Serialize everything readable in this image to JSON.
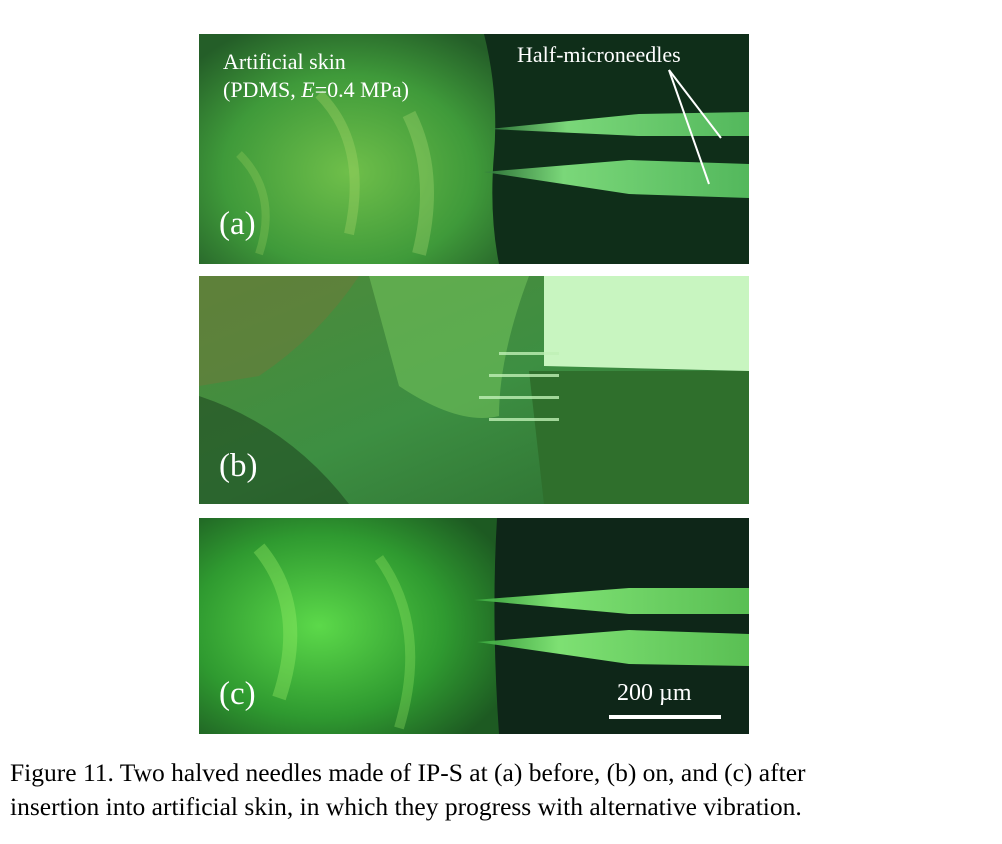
{
  "panels": [
    {
      "id": "a",
      "label": "(a)",
      "annotations": {
        "skin_line1": "Artificial skin",
        "skin_line2_prefix": "(PDMS, ",
        "skin_line2_var": "E",
        "skin_line2_suffix": "=0.4 MPa)",
        "needles": "Half-microneedles"
      }
    },
    {
      "id": "b",
      "label": "(b)"
    },
    {
      "id": "c",
      "label": "(c)",
      "scale_bar": "200 µm"
    }
  ],
  "caption": {
    "line1": "Figure 11. Two halved needles made of IP-S at (a) before, (b) on, and (c) after",
    "line2": "insertion into artificial skin, in which they progress with alternative vibration."
  },
  "colors": {
    "skin_green": "#3f9a3a",
    "bright_green": "#7cf07a",
    "dark_background": "#0f2a17",
    "white": "#ffffff"
  }
}
